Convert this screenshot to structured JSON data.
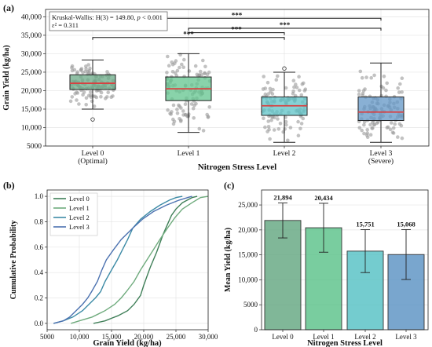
{
  "figure": {
    "panel_a_label": "(a)",
    "panel_b_label": "(b)",
    "panel_c_label": "(c)",
    "stats_line1": "Kruskal-Wallis: H(3) = 149.80, ",
    "stats_p": "p",
    "stats_p_rest": " < 0.001",
    "stats_line2": "ε² = 0.311",
    "sig_marker": "***",
    "colors": {
      "level0": "#6aaa86",
      "level1": "#62c48e",
      "level2": "#5cc3c7",
      "level3": "#6296c6",
      "median": "#d94040",
      "points": "#9a9a9a",
      "line0": "#3f7f58",
      "line1": "#6fab7d",
      "line2": "#3d8ba6",
      "line3": "#4c72b0"
    }
  },
  "chart_data": [
    {
      "id": "a",
      "type": "box",
      "xlabel": "Nitrogen Stress Level",
      "ylabel": "Grain Yield (kg/ha)",
      "ylim": [
        5000,
        42000
      ],
      "yticks": [
        "5000",
        "10,000",
        "15,000",
        "20,000",
        "25,000",
        "30,000",
        "35,000",
        "40,000"
      ],
      "ytick_values": [
        5000,
        10000,
        15000,
        20000,
        25000,
        30000,
        35000,
        40000
      ],
      "categories": [
        "Level 0",
        "Level 1",
        "Level 2",
        "Level 3"
      ],
      "category_sublabels": [
        "(Optimal)",
        "",
        "",
        "(Severe)"
      ],
      "boxes": [
        {
          "name": "Level 0",
          "q1": 20300,
          "median": 22000,
          "q3": 24300,
          "whisker_low": 15000,
          "whisker_high": 28300,
          "outliers": [
            12200
          ]
        },
        {
          "name": "Level 1",
          "q1": 17300,
          "median": 20500,
          "q3": 23700,
          "whisker_low": 8700,
          "whisker_high": 30000,
          "outliers": []
        },
        {
          "name": "Level 2",
          "q1": 13300,
          "median": 15900,
          "q3": 18300,
          "whisker_low": 6000,
          "whisker_high": 25000,
          "outliers": [
            26000
          ]
        },
        {
          "name": "Level 3",
          "q1": 11900,
          "median": 14200,
          "q3": 18300,
          "whisker_low": 6000,
          "whisker_high": 27500,
          "outliers": []
        }
      ],
      "significance": [
        {
          "from": "Level 0",
          "to": "Level 3",
          "y": 39600,
          "label": "***"
        },
        {
          "from": "Level 1",
          "to": "Level 3",
          "y": 36900,
          "label": "***"
        },
        {
          "from": "Level 1",
          "to": "Level 2",
          "y": 35700,
          "label": "***"
        },
        {
          "from": "Level 0",
          "to": "Level 2",
          "y": 34400,
          "label": "***"
        }
      ],
      "grid": true
    },
    {
      "id": "b",
      "type": "line",
      "xlabel": "Grain Yield (kg/ha)",
      "ylabel": "Cumulative Probability",
      "xlim": [
        5000,
        30000
      ],
      "ylim": [
        -0.05,
        1.05
      ],
      "xticks": [
        "5000",
        "10,000",
        "15,000",
        "20,000",
        "25,000",
        "30,000"
      ],
      "xtick_values": [
        5000,
        10000,
        15000,
        20000,
        25000,
        30000
      ],
      "yticks": [
        "0.0",
        "0.2",
        "0.4",
        "0.6",
        "0.8",
        "1.0"
      ],
      "ytick_values": [
        0,
        0.2,
        0.4,
        0.6,
        0.8,
        1.0
      ],
      "legend_position": "top-left",
      "series": [
        {
          "name": "Level 0",
          "points": [
            [
              12200,
              0.0
            ],
            [
              14000,
              0.02
            ],
            [
              15000,
              0.04
            ],
            [
              16000,
              0.06
            ],
            [
              17500,
              0.1
            ],
            [
              18500,
              0.15
            ],
            [
              19500,
              0.22
            ],
            [
              20000,
              0.3
            ],
            [
              20500,
              0.37
            ],
            [
              21000,
              0.44
            ],
            [
              21500,
              0.5
            ],
            [
              22000,
              0.56
            ],
            [
              22500,
              0.63
            ],
            [
              23000,
              0.7
            ],
            [
              23700,
              0.78
            ],
            [
              24300,
              0.85
            ],
            [
              25000,
              0.9
            ],
            [
              26000,
              0.95
            ],
            [
              27500,
              0.99
            ],
            [
              28300,
              1.0
            ]
          ]
        },
        {
          "name": "Level 1",
          "points": [
            [
              8700,
              0.0
            ],
            [
              10000,
              0.02
            ],
            [
              12000,
              0.05
            ],
            [
              14000,
              0.1
            ],
            [
              15500,
              0.15
            ],
            [
              16500,
              0.2
            ],
            [
              17300,
              0.25
            ],
            [
              18500,
              0.33
            ],
            [
              19500,
              0.42
            ],
            [
              20500,
              0.5
            ],
            [
              21500,
              0.58
            ],
            [
              22500,
              0.66
            ],
            [
              23700,
              0.75
            ],
            [
              24800,
              0.83
            ],
            [
              26000,
              0.9
            ],
            [
              27500,
              0.95
            ],
            [
              28800,
              0.99
            ],
            [
              30000,
              1.0
            ]
          ]
        },
        {
          "name": "Level 2",
          "points": [
            [
              6000,
              0.0
            ],
            [
              7500,
              0.02
            ],
            [
              9000,
              0.05
            ],
            [
              10500,
              0.1
            ],
            [
              11500,
              0.15
            ],
            [
              12500,
              0.2
            ],
            [
              13300,
              0.25
            ],
            [
              14000,
              0.33
            ],
            [
              15000,
              0.42
            ],
            [
              15900,
              0.5
            ],
            [
              16700,
              0.58
            ],
            [
              17500,
              0.66
            ],
            [
              18300,
              0.75
            ],
            [
              19500,
              0.82
            ],
            [
              21000,
              0.88
            ],
            [
              22500,
              0.93
            ],
            [
              24000,
              0.97
            ],
            [
              25000,
              0.99
            ],
            [
              26000,
              1.0
            ]
          ]
        },
        {
          "name": "Level 3",
          "points": [
            [
              6000,
              0.0
            ],
            [
              7500,
              0.02
            ],
            [
              8500,
              0.05
            ],
            [
              9500,
              0.1
            ],
            [
              10500,
              0.15
            ],
            [
              11300,
              0.2
            ],
            [
              11900,
              0.25
            ],
            [
              12800,
              0.33
            ],
            [
              13500,
              0.42
            ],
            [
              14200,
              0.5
            ],
            [
              15300,
              0.58
            ],
            [
              16500,
              0.66
            ],
            [
              18300,
              0.75
            ],
            [
              19800,
              0.82
            ],
            [
              21500,
              0.88
            ],
            [
              23500,
              0.93
            ],
            [
              25500,
              0.97
            ],
            [
              26800,
              0.99
            ],
            [
              27500,
              1.0
            ]
          ]
        }
      ],
      "grid": true
    },
    {
      "id": "c",
      "type": "bar",
      "xlabel": "Nitrogen Stress Level",
      "ylabel": "Mean Yield (kg/ha)",
      "ylim": [
        0,
        28000
      ],
      "yticks": [
        "0",
        "5000",
        "10,000",
        "15,000",
        "20,000",
        "25,000"
      ],
      "ytick_values": [
        0,
        5000,
        10000,
        15000,
        20000,
        25000
      ],
      "categories": [
        "Level 0",
        "Level 1",
        "Level 2",
        "Level 3"
      ],
      "values": [
        21894,
        20434,
        15751,
        15068
      ],
      "value_labels": [
        "21,894",
        "20,434",
        "15,751",
        "15,068"
      ],
      "error": [
        3500,
        4900,
        4300,
        5000
      ],
      "grid": true
    }
  ]
}
